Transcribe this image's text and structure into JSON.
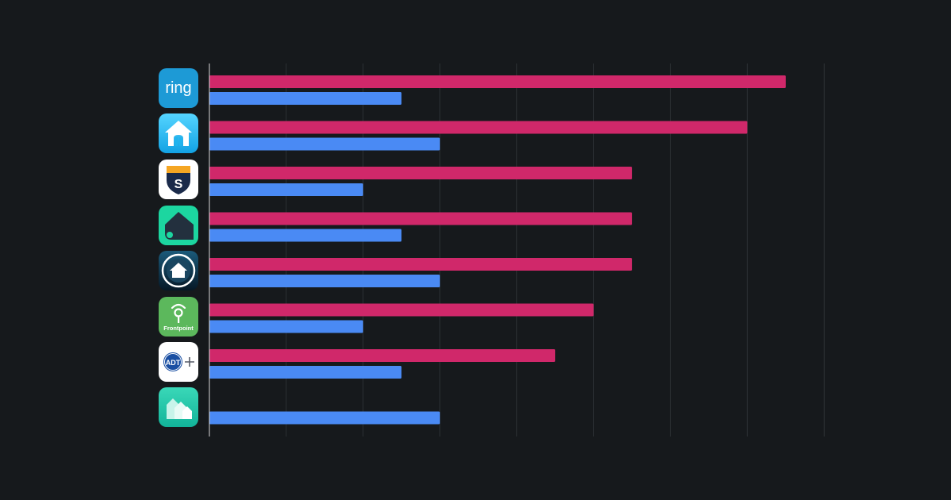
{
  "chart_data": {
    "type": "bar",
    "orientation": "horizontal",
    "categories": [
      "ring",
      "nest",
      "SimpliSafe",
      "Wyze",
      "Vivint",
      "Frontpoint",
      "ADT+",
      "Kangaroo"
    ],
    "series": [
      {
        "color": "#d0286a",
        "values": [
          7.5,
          7.0,
          5.5,
          5.5,
          5.5,
          5.0,
          4.5,
          0
        ]
      },
      {
        "color": "#4a8af4",
        "values": [
          2.5,
          3.0,
          2.0,
          2.5,
          3.0,
          2.0,
          2.5,
          3.0
        ]
      }
    ],
    "xlim": [
      0,
      8
    ],
    "grid": true,
    "legend": "none",
    "axis_labels_visible": false
  },
  "logos": [
    {
      "icon": "ring-logo-icon",
      "text": "ring",
      "bg": "#1d9ad6"
    },
    {
      "icon": "nest-house-icon",
      "bg": "#1fb4ee"
    },
    {
      "icon": "simplisafe-shield-icon",
      "text": "S",
      "bg": "#ffffff"
    },
    {
      "icon": "wyze-house-icon",
      "bg": "#1cd6a0"
    },
    {
      "icon": "vivint-house-icon",
      "bg": "#0b2a3d"
    },
    {
      "icon": "frontpoint-logo-icon",
      "text": "Frontpoint",
      "bg": "#5cb85c"
    },
    {
      "icon": "adt-plus-logo-icon",
      "text": "ADT",
      "bg": "#ffffff"
    },
    {
      "icon": "kangaroo-logo-icon",
      "bg": "#1fc6a8"
    }
  ],
  "colors": {
    "background": "#16191c",
    "grid": "#2c3034",
    "axis": "#d8d8d8"
  }
}
